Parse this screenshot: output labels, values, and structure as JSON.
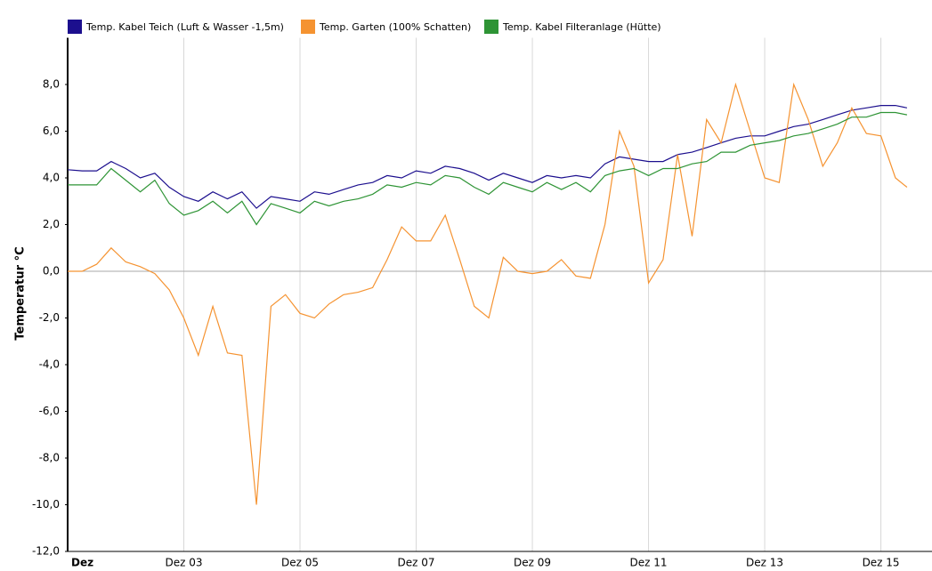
{
  "chart_data": {
    "type": "line",
    "y_label": "Temperatur °C",
    "x": [
      1,
      1.25,
      1.5,
      1.75,
      2,
      2.25,
      2.5,
      2.75,
      3,
      3.25,
      3.5,
      3.75,
      4,
      4.25,
      4.5,
      4.75,
      5,
      5.25,
      5.5,
      5.75,
      6,
      6.25,
      6.5,
      6.75,
      7,
      7.25,
      7.5,
      7.75,
      8,
      8.25,
      8.5,
      8.75,
      9,
      9.25,
      9.5,
      9.75,
      10,
      10.25,
      10.5,
      10.75,
      11,
      11.25,
      11.5,
      11.75,
      12,
      12.25,
      12.5,
      12.75,
      13,
      13.25,
      13.5,
      13.75,
      14,
      14.25,
      14.5,
      14.75,
      15,
      15.25,
      15.45
    ],
    "series": [
      {
        "name": "Temp. Kabel Teich (Luft & Wasser -1,5m)",
        "color": "#1c0f8e",
        "values": [
          4.35,
          4.3,
          4.3,
          4.7,
          4.4,
          4.0,
          4.2,
          3.6,
          3.2,
          3.0,
          3.4,
          3.1,
          3.4,
          2.7,
          3.2,
          3.1,
          3.0,
          3.4,
          3.3,
          3.5,
          3.7,
          3.8,
          4.1,
          4.0,
          4.3,
          4.2,
          4.5,
          4.4,
          4.2,
          3.9,
          4.2,
          4.0,
          3.8,
          4.1,
          4.0,
          4.1,
          4.0,
          4.6,
          4.9,
          4.8,
          4.7,
          4.7,
          5.0,
          5.1,
          5.3,
          5.5,
          5.7,
          5.8,
          5.8,
          6.0,
          6.2,
          6.3,
          6.5,
          6.7,
          6.9,
          7.0,
          7.1,
          7.1,
          7.0
        ]
      },
      {
        "name": "Temp. Garten (100% Schatten)",
        "color": "#f59331",
        "values": [
          0.0,
          0.0,
          0.3,
          1.0,
          0.4,
          0.2,
          -0.1,
          -0.8,
          -2.0,
          -3.6,
          -1.5,
          -3.5,
          -3.6,
          -10.0,
          -1.5,
          -1.0,
          -1.8,
          -2.0,
          -1.4,
          -1.0,
          -0.9,
          -0.7,
          0.5,
          1.9,
          1.3,
          1.3,
          2.4,
          0.5,
          -1.5,
          -2.0,
          0.6,
          0.0,
          -0.1,
          0.0,
          0.5,
          -0.2,
          -0.3,
          2.0,
          6.0,
          4.5,
          -0.5,
          0.5,
          5.0,
          1.5,
          6.5,
          5.5,
          8.0,
          6.0,
          4.0,
          3.8,
          8.0,
          6.5,
          4.5,
          5.5,
          7.0,
          5.9,
          5.8,
          4.0,
          3.6
        ]
      },
      {
        "name": "Temp. Kabel Filteranlage (Hütte)",
        "color": "#2e9435",
        "values": [
          3.7,
          3.7,
          3.7,
          4.4,
          3.9,
          3.4,
          3.9,
          2.9,
          2.4,
          2.6,
          3.0,
          2.5,
          3.0,
          2.0,
          2.9,
          2.7,
          2.5,
          3.0,
          2.8,
          3.0,
          3.1,
          3.3,
          3.7,
          3.6,
          3.8,
          3.7,
          4.1,
          4.0,
          3.6,
          3.3,
          3.8,
          3.6,
          3.4,
          3.8,
          3.5,
          3.8,
          3.4,
          4.1,
          4.3,
          4.4,
          4.1,
          4.4,
          4.4,
          4.6,
          4.7,
          5.1,
          5.1,
          5.4,
          5.5,
          5.6,
          5.8,
          5.9,
          6.1,
          6.3,
          6.6,
          6.6,
          6.8,
          6.8,
          6.7
        ]
      }
    ],
    "xlim": [
      1,
      15.88
    ],
    "xticks": [
      {
        "value": 1,
        "label": "Dez"
      },
      {
        "value": 3,
        "label": "Dez 03"
      },
      {
        "value": 5,
        "label": "Dez 05"
      },
      {
        "value": 7,
        "label": "Dez 07"
      },
      {
        "value": 9,
        "label": "Dez 09"
      },
      {
        "value": 11,
        "label": "Dez 11"
      },
      {
        "value": 13,
        "label": "Dez 13"
      },
      {
        "value": 15,
        "label": "Dez 15"
      }
    ],
    "ylim": [
      -12,
      10
    ],
    "yticks": [
      {
        "value": -12,
        "label": "-12,0"
      },
      {
        "value": -10,
        "label": "-10,0"
      },
      {
        "value": -8,
        "label": "-8,0"
      },
      {
        "value": -6,
        "label": "-6,0"
      },
      {
        "value": -4,
        "label": "-4,0"
      },
      {
        "value": -2,
        "label": "-2,0"
      },
      {
        "value": 0,
        "label": "0,0"
      },
      {
        "value": 2,
        "label": "2,0"
      },
      {
        "value": 4,
        "label": "4,0"
      },
      {
        "value": 6,
        "label": "6,0"
      },
      {
        "value": 8,
        "label": "8,0"
      }
    ],
    "grid": true
  }
}
